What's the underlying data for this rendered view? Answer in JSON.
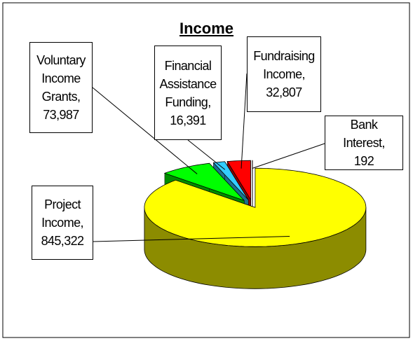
{
  "chart_data": {
    "type": "pie",
    "title": "Income",
    "categories": [
      "Project Income,",
      "Voluntary Income Grants,",
      "Financial Assistance Funding,",
      "Fundraising Income,",
      "Bank Interest,"
    ],
    "values": [
      845322,
      73987,
      16391,
      32807,
      192
    ],
    "value_labels": [
      "845,322",
      "73,987",
      "16,391",
      "32,807",
      "192"
    ],
    "colors": [
      "#ffff00",
      "#00ff00",
      "#33ccff",
      "#ff0000",
      "#800000"
    ]
  }
}
